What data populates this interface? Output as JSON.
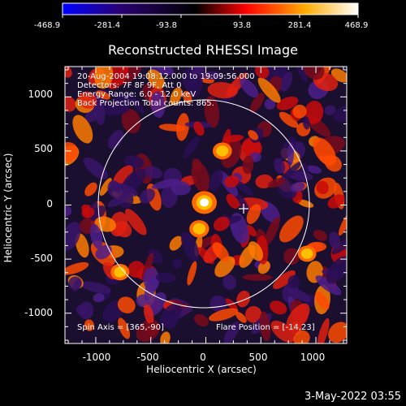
{
  "colorbar": {
    "tick_labels": [
      "-468.9",
      "-281.4",
      "-93.8",
      "93.8",
      "281.4",
      "468.9"
    ],
    "colormap": [
      "#0000ff",
      "#2a0070",
      "#000000",
      "#ff0000",
      "#ffff00",
      "#ffffff"
    ]
  },
  "title": "Reconstructed RHESSI Image",
  "info": {
    "line1": "20-Aug-2004 19:08:12.000 to 19:09:56.000",
    "line2": "Detectors: 7F 8F 9F, Att 0",
    "line3": "Energy Range: 6.0 - 12.0 keV",
    "line4": "Back Projection    Total counts: 865.",
    "spin_axis": "Spin Axis = [365,-90]",
    "flare_position": "Flare Position = [-14,23]"
  },
  "axes": {
    "xlabel": "Heliocentric X (arcsec)",
    "ylabel": "Heliocentric Y (arcsec)",
    "xticks": [
      "-1000",
      "-500",
      "0",
      "500",
      "1000"
    ],
    "yticks": [
      "1000",
      "500",
      "0",
      "-500",
      "-1000"
    ],
    "xlim": [
      -1280,
      1280
    ],
    "ylim": [
      -1280,
      1280
    ]
  },
  "footnote": "3-May-2022 03:55",
  "chart_data": {
    "type": "heatmap",
    "title": "Reconstructed RHESSI Image",
    "xlabel": "Heliocentric X (arcsec)",
    "ylabel": "Heliocentric Y (arcsec)",
    "xlim": [
      -1280,
      1280
    ],
    "ylim": [
      -1280,
      1280
    ],
    "value_range": [
      -468.9,
      468.9
    ],
    "colorbar_ticks": [
      -468.9,
      -281.4,
      -93.8,
      93.8,
      281.4,
      468.9
    ],
    "solar_limb_radius": 950,
    "flare_position": [
      -14,
      23
    ],
    "spin_axis": [
      365,
      -90
    ],
    "peak_sources": [
      {
        "x": -14,
        "y": 23,
        "value": 468.9
      },
      {
        "x": -60,
        "y": -220,
        "value": 250
      },
      {
        "x": 150,
        "y": 500,
        "value": 230
      },
      {
        "x": -780,
        "y": -620,
        "value": 210
      },
      {
        "x": 920,
        "y": -450,
        "value": 200
      }
    ]
  }
}
